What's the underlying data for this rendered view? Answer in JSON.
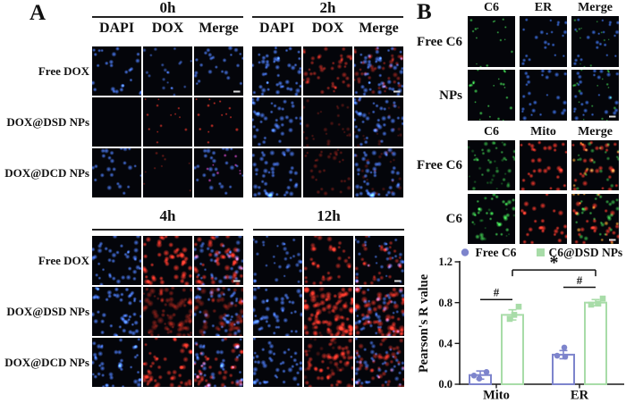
{
  "figure": {
    "panelA_label": "A",
    "panelB_label": "B"
  },
  "panelA": {
    "row_labels": [
      "Free DOX",
      "DOX@DSD NPs",
      "DOX@DCD NPs"
    ],
    "blocks": [
      {
        "time": "0h",
        "col_headers": [
          "DAPI",
          "DOX",
          "Merge"
        ]
      },
      {
        "time": "2h",
        "col_headers": [
          "DAPI",
          "DOX",
          "Merge"
        ]
      },
      {
        "time": "4h",
        "col_headers": []
      },
      {
        "time": "12h",
        "col_headers": []
      }
    ]
  },
  "panelB": {
    "groups": [
      {
        "col_headers": [
          "C6",
          "ER",
          "Merge"
        ],
        "row_labels": [
          "Free C6",
          "NPs"
        ]
      },
      {
        "col_headers": [
          "C6",
          "Mito",
          "Merge"
        ],
        "row_labels": [
          "Free C6",
          "C6"
        ]
      }
    ]
  },
  "chart_data": {
    "type": "bar",
    "title": "",
    "xlabel": "",
    "ylabel": "Pearson's R value",
    "categories": [
      "Mito",
      "ER"
    ],
    "ylim": [
      0,
      1.2
    ],
    "yticks": [
      "0.0",
      "0.4",
      "0.8",
      "1.2"
    ],
    "grid": false,
    "legend_position": "top",
    "series": [
      {
        "name": "Free C6",
        "marker": "circle",
        "color": "#7d84cc",
        "values": [
          0.09,
          0.29
        ],
        "errors": [
          0.04,
          0.04
        ],
        "points": [
          [
            [
              -7,
              0.085
            ],
            [
              -1,
              0.055
            ],
            [
              7,
              0.12
            ]
          ],
          [
            [
              -7,
              0.28
            ],
            [
              2,
              0.27
            ],
            [
              1,
              0.36
            ]
          ]
        ]
      },
      {
        "name": "C6@DSD NPs",
        "marker": "square",
        "color": "#a8dca8",
        "values": [
          0.68,
          0.8
        ],
        "errors": [
          0.05,
          0.03
        ],
        "points": [
          [
            [
              -3,
              0.64
            ],
            [
              2,
              0.68
            ],
            [
              7,
              0.76
            ]
          ],
          [
            [
              -5,
              0.78
            ],
            [
              3,
              0.79
            ],
            [
              8,
              0.84
            ]
          ]
        ]
      }
    ],
    "significance": [
      {
        "symbol": "#",
        "a": [
          "Mito",
          0
        ],
        "b": [
          "Mito",
          1
        ],
        "y": 0.83,
        "bracket": false
      },
      {
        "symbol": "#",
        "a": [
          "ER",
          0
        ],
        "b": [
          "ER",
          1
        ],
        "y": 0.95,
        "bracket": false
      },
      {
        "symbol": "*",
        "a": [
          "Mito",
          1
        ],
        "b": [
          "ER",
          1
        ],
        "y": 1.12,
        "bracket": true
      }
    ]
  },
  "microscopy": {
    "palette": {
      "B": "#4a7af0",
      "R": "#f03322",
      "r": "#8c1c10",
      "M": "#e048d0",
      "G": "#3ed24a",
      "g": "#1f8f2a",
      "E": "#3f76f0",
      "O": "#f0a02a"
    },
    "scalebars": {
      "0h": [
        [
          0,
          2
        ]
      ],
      "2h": [
        [
          0,
          2
        ]
      ],
      "4h": [
        [
          0,
          2
        ]
      ],
      "12h": [
        [
          0,
          2
        ]
      ],
      "B1": [
        [
          1,
          2
        ]
      ],
      "B2": [
        [
          1,
          2
        ]
      ]
    },
    "blocks": {
      "0h": [
        [
          [
            [
              10,
              26,
              "B",
              1.8,
              3.2,
              0.95
            ]
          ],
          [
            [
              11,
              20,
              "B",
              1.5,
              2.6,
              0.7
            ]
          ],
          [
            [
              12,
              24,
              "B",
              1.8,
              3.2,
              0.9
            ]
          ]
        ],
        [
          [],
          [
            [
              13,
              13,
              "R",
              1.2,
              2.2,
              0.85
            ]
          ],
          [
            [
              13,
              15,
              "R",
              1.3,
              2.4,
              0.95
            ]
          ]
        ],
        [
          [
            [
              14,
              25,
              "B",
              1.8,
              3.2,
              0.9
            ]
          ],
          [
            [
              15,
              9,
              "r",
              1.2,
              2.0,
              0.8
            ]
          ],
          [
            [
              14,
              25,
              "B",
              1.8,
              3.2,
              0.9
            ],
            [
              16,
              9,
              "M",
              1.3,
              2.2,
              0.85
            ]
          ]
        ]
      ],
      "2h": [
        [
          [
            [
              20,
              48,
              "B",
              1.8,
              3.4,
              0.95
            ]
          ],
          [
            [
              21,
              44,
              "R",
              1.8,
              3.4,
              0.65
            ]
          ],
          [
            [
              20,
              48,
              "B",
              1.8,
              3.4,
              0.9
            ],
            [
              21,
              40,
              "R",
              1.8,
              3.4,
              0.55
            ]
          ]
        ],
        [
          [
            [
              22,
              42,
              "B",
              1.8,
              3.4,
              0.9
            ]
          ],
          [
            [
              23,
              26,
              "r",
              1.5,
              2.8,
              0.6
            ]
          ],
          [
            [
              22,
              42,
              "B",
              1.8,
              3.4,
              0.9
            ],
            [
              23,
              18,
              "r",
              1.5,
              2.6,
              0.5
            ]
          ]
        ],
        [
          [
            [
              24,
              46,
              "B",
              1.8,
              3.4,
              0.9
            ]
          ],
          [
            [
              25,
              30,
              "r",
              1.6,
              3.0,
              0.7
            ]
          ],
          [
            [
              24,
              46,
              "B",
              1.8,
              3.4,
              0.9
            ],
            [
              25,
              22,
              "r",
              1.6,
              2.8,
              0.55
            ]
          ]
        ]
      ],
      "4h": [
        [
          [
            [
              30,
              40,
              "B",
              1.8,
              3.2,
              0.9
            ]
          ],
          [
            [
              31,
              46,
              "R",
              2.2,
              3.8,
              0.9
            ]
          ],
          [
            [
              30,
              40,
              "B",
              1.8,
              3.2,
              0.8
            ],
            [
              31,
              44,
              "R",
              2.2,
              3.8,
              0.8
            ]
          ]
        ],
        [
          [
            [
              32,
              48,
              "B",
              1.8,
              3.4,
              0.95
            ]
          ],
          [
            [
              33,
              58,
              "r",
              2.4,
              4.2,
              0.85
            ],
            [
              34,
              18,
              "R",
              1.6,
              2.6,
              0.4
            ]
          ],
          [
            [
              32,
              44,
              "B",
              1.8,
              3.2,
              0.85
            ],
            [
              33,
              52,
              "r",
              2.4,
              4.2,
              0.8
            ]
          ]
        ],
        [
          [
            [
              35,
              44,
              "B",
              1.8,
              3.2,
              0.9
            ]
          ],
          [
            [
              36,
              50,
              "R",
              2.0,
              3.6,
              0.75
            ]
          ],
          [
            [
              35,
              44,
              "B",
              1.8,
              3.2,
              0.85
            ],
            [
              36,
              44,
              "R",
              2.0,
              3.4,
              0.7
            ]
          ]
        ]
      ],
      "12h": [
        [
          [
            [
              40,
              32,
              "B",
              1.6,
              3.0,
              0.8
            ]
          ],
          [
            [
              41,
              36,
              "R",
              2.0,
              3.6,
              0.7
            ]
          ],
          [
            [
              40,
              32,
              "B",
              1.6,
              3.0,
              0.8
            ],
            [
              41,
              30,
              "R",
              2.0,
              3.4,
              0.65
            ]
          ]
        ],
        [
          [
            [
              42,
              46,
              "B",
              1.8,
              3.4,
              0.9
            ]
          ],
          [
            [
              43,
              70,
              "R",
              2.4,
              4.4,
              0.85
            ],
            [
              44,
              26,
              "r",
              2.0,
              3.4,
              0.6
            ]
          ],
          [
            [
              42,
              42,
              "B",
              1.8,
              3.2,
              0.8
            ],
            [
              43,
              60,
              "R",
              2.4,
              4.2,
              0.75
            ]
          ]
        ],
        [
          [
            [
              45,
              44,
              "B",
              1.8,
              3.4,
              0.9
            ]
          ],
          [
            [
              46,
              54,
              "R",
              2.2,
              3.8,
              0.7
            ],
            [
              47,
              18,
              "r",
              2.0,
              3.2,
              0.5
            ]
          ],
          [
            [
              45,
              44,
              "B",
              1.8,
              3.2,
              0.8
            ],
            [
              46,
              46,
              "R",
              2.2,
              3.6,
              0.6
            ]
          ]
        ]
      ],
      "B1": [
        [
          [
            [
              50,
              16,
              "G",
              1.0,
              2.0,
              0.9
            ]
          ],
          [
            [
              51,
              22,
              "E",
              1.6,
              2.8,
              0.9
            ]
          ],
          [
            [
              51,
              22,
              "E",
              1.6,
              2.8,
              0.9
            ],
            [
              50,
              12,
              "G",
              1.0,
              1.8,
              0.7
            ]
          ]
        ],
        [
          [
            [
              52,
              22,
              "G",
              1.2,
              2.4,
              0.95
            ]
          ],
          [
            [
              53,
              26,
              "E",
              1.6,
              3.0,
              0.9
            ]
          ],
          [
            [
              53,
              26,
              "E",
              1.6,
              3.0,
              0.9
            ],
            [
              52,
              18,
              "G",
              1.2,
              2.2,
              0.8
            ]
          ]
        ]
      ],
      "B2": [
        [
          [
            [
              60,
              26,
              "G",
              1.6,
              3.0,
              0.75
            ],
            [
              61,
              18,
              "g",
              1.4,
              2.4,
              0.6
            ]
          ],
          [
            [
              62,
              30,
              "R",
              2.0,
              3.6,
              0.95
            ]
          ],
          [
            [
              62,
              30,
              "R",
              2.0,
              3.6,
              0.9
            ],
            [
              60,
              22,
              "G",
              1.6,
              2.8,
              0.7
            ],
            [
              63,
              6,
              "O",
              1.6,
              2.6,
              0.85
            ]
          ]
        ],
        [
          [
            [
              64,
              30,
              "G",
              1.8,
              3.2,
              0.9
            ],
            [
              67,
              14,
              "g",
              1.4,
              2.4,
              0.6
            ]
          ],
          [
            [
              65,
              26,
              "R",
              2.0,
              3.6,
              0.95
            ]
          ],
          [
            [
              65,
              26,
              "R",
              2.0,
              3.6,
              0.9
            ],
            [
              64,
              26,
              "G",
              1.8,
              3.0,
              0.8
            ],
            [
              66,
              10,
              "O",
              1.8,
              3.0,
              0.9
            ]
          ]
        ]
      ]
    }
  }
}
